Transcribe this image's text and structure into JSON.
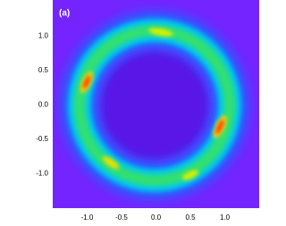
{
  "chart_data": {
    "type": "heatmap",
    "label": "(a)",
    "xlim": [
      -1.5,
      1.5
    ],
    "ylim": [
      -1.5,
      1.5
    ],
    "xticks": [
      {
        "value": -1,
        "label": "-1.0"
      },
      -0.5,
      {
        "value": 0,
        "label": "0.0"
      },
      0.5,
      {
        "value": 1,
        "label": "1.0"
      }
    ],
    "yticks": [
      {
        "value": -1,
        "label": "-1.0"
      },
      -0.5,
      {
        "value": 0,
        "label": "0.0"
      },
      0.5,
      {
        "value": 1,
        "label": "1.0"
      }
    ],
    "grid": false
  }
}
